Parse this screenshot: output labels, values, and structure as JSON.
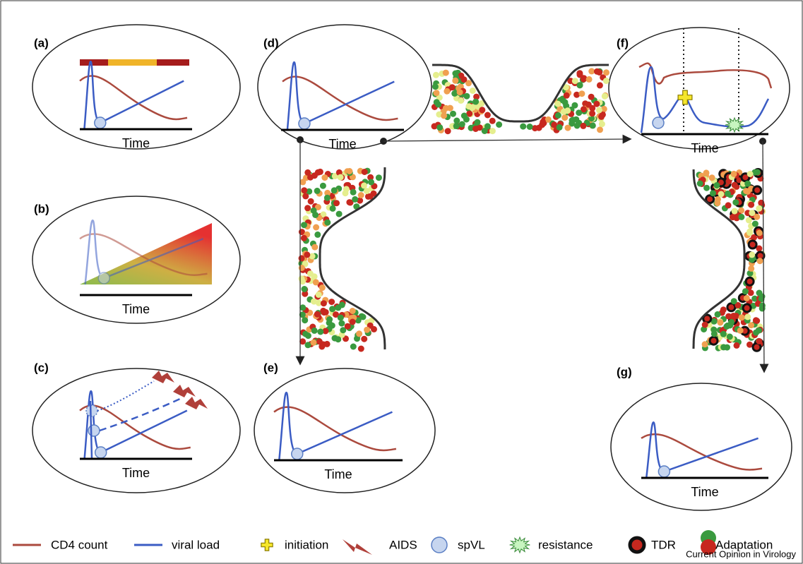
{
  "panels": [
    {
      "label": "(a)",
      "axis_label": "Time"
    },
    {
      "label": "(b)",
      "axis_label": "Time"
    },
    {
      "label": "(c)",
      "axis_label": "Time"
    },
    {
      "label": "(d)",
      "axis_label": "Time"
    },
    {
      "label": "(e)",
      "axis_label": "Time"
    },
    {
      "label": "(f)",
      "axis_label": "Time"
    },
    {
      "label": "(g)",
      "axis_label": "Time"
    }
  ],
  "legend": [
    {
      "label": "CD4 count"
    },
    {
      "label": "viral load"
    },
    {
      "label": "initiation"
    },
    {
      "label": "AIDS"
    },
    {
      "label": "spVL"
    },
    {
      "label": "resistance"
    },
    {
      "label": "TDR"
    },
    {
      "label": "Adaptation"
    }
  ],
  "footer": "Current Opinion in Virology"
}
